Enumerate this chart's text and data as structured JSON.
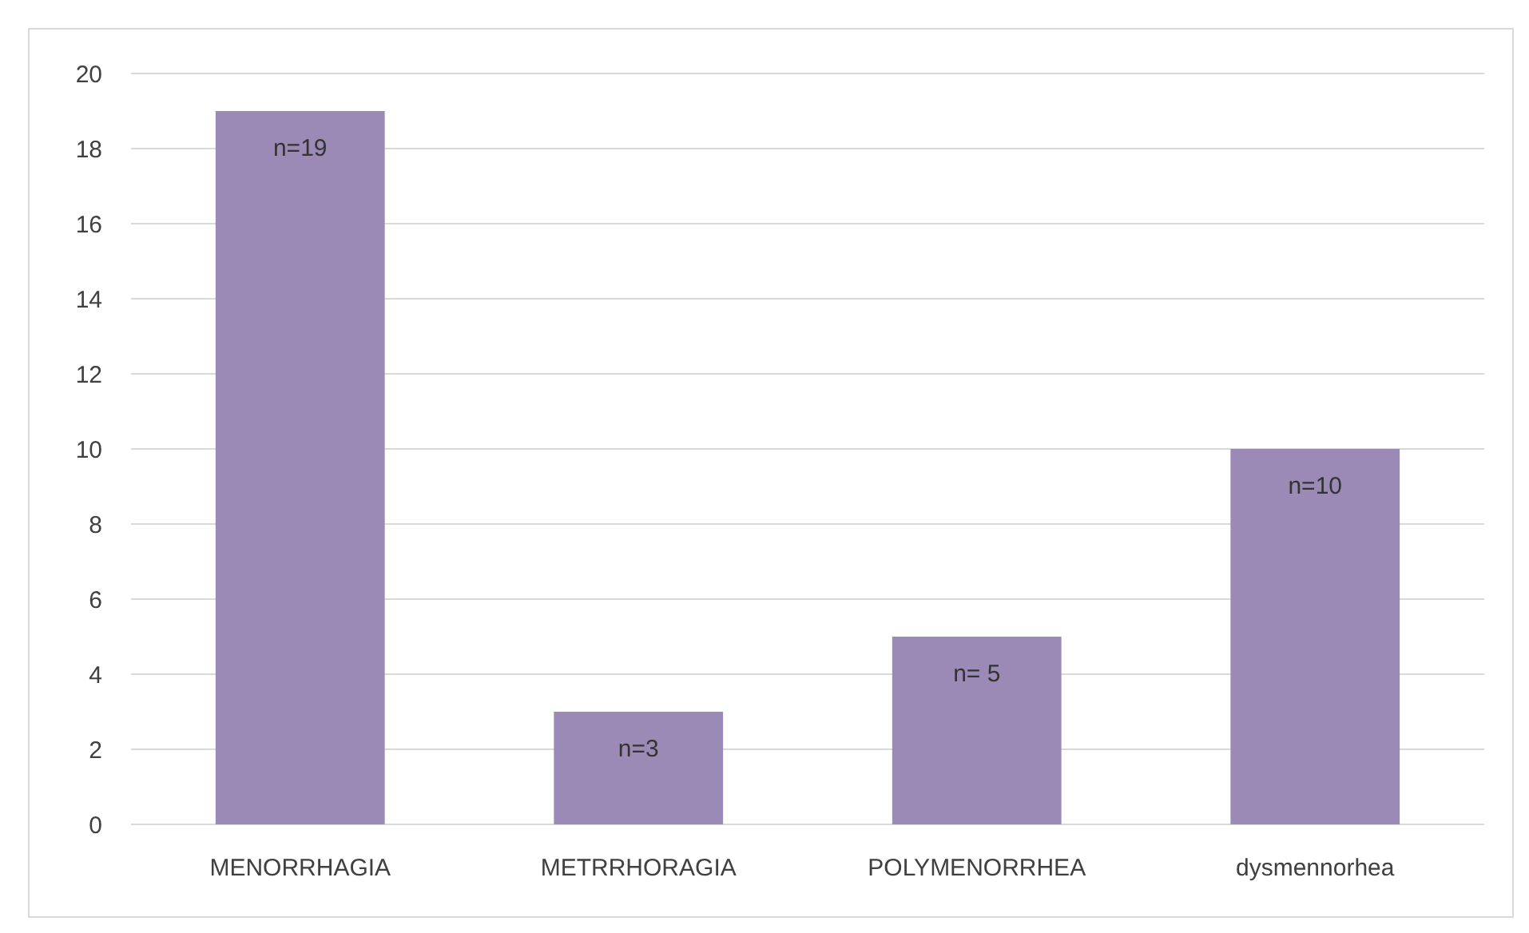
{
  "chart_data": {
    "type": "bar",
    "categories": [
      "MENORRHAGIA",
      "METRRHORAGIA",
      "POLYMENORRHEA",
      "dysmennorhea"
    ],
    "values": [
      19,
      3,
      5,
      10
    ],
    "value_labels": [
      "n=19",
      "n=3",
      "n= 5",
      "n=10"
    ],
    "color": "#9a8ab5",
    "ylim": [
      0,
      20
    ],
    "yticks": [
      0,
      2,
      4,
      6,
      8,
      10,
      12,
      14,
      16,
      18,
      20
    ],
    "grid": "y"
  }
}
